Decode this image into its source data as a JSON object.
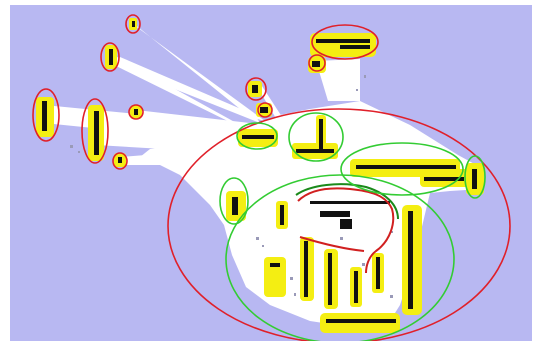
{
  "map": {
    "background_color": "#b8b8f2",
    "free_space_color": "#ffffff",
    "obstacle_color": "#111111",
    "inflation_color": "#f4ee12",
    "unknown_speckle_color": "#9a9ab8",
    "planned_path_color": "#d12020",
    "robot_trail_color": "#1b8a1b",
    "legend": []
  },
  "annotations": {
    "circle_colors": {
      "red": "#e0202a",
      "green": "#33cc33"
    },
    "red_region_count": 11,
    "green_region_count": 6
  }
}
